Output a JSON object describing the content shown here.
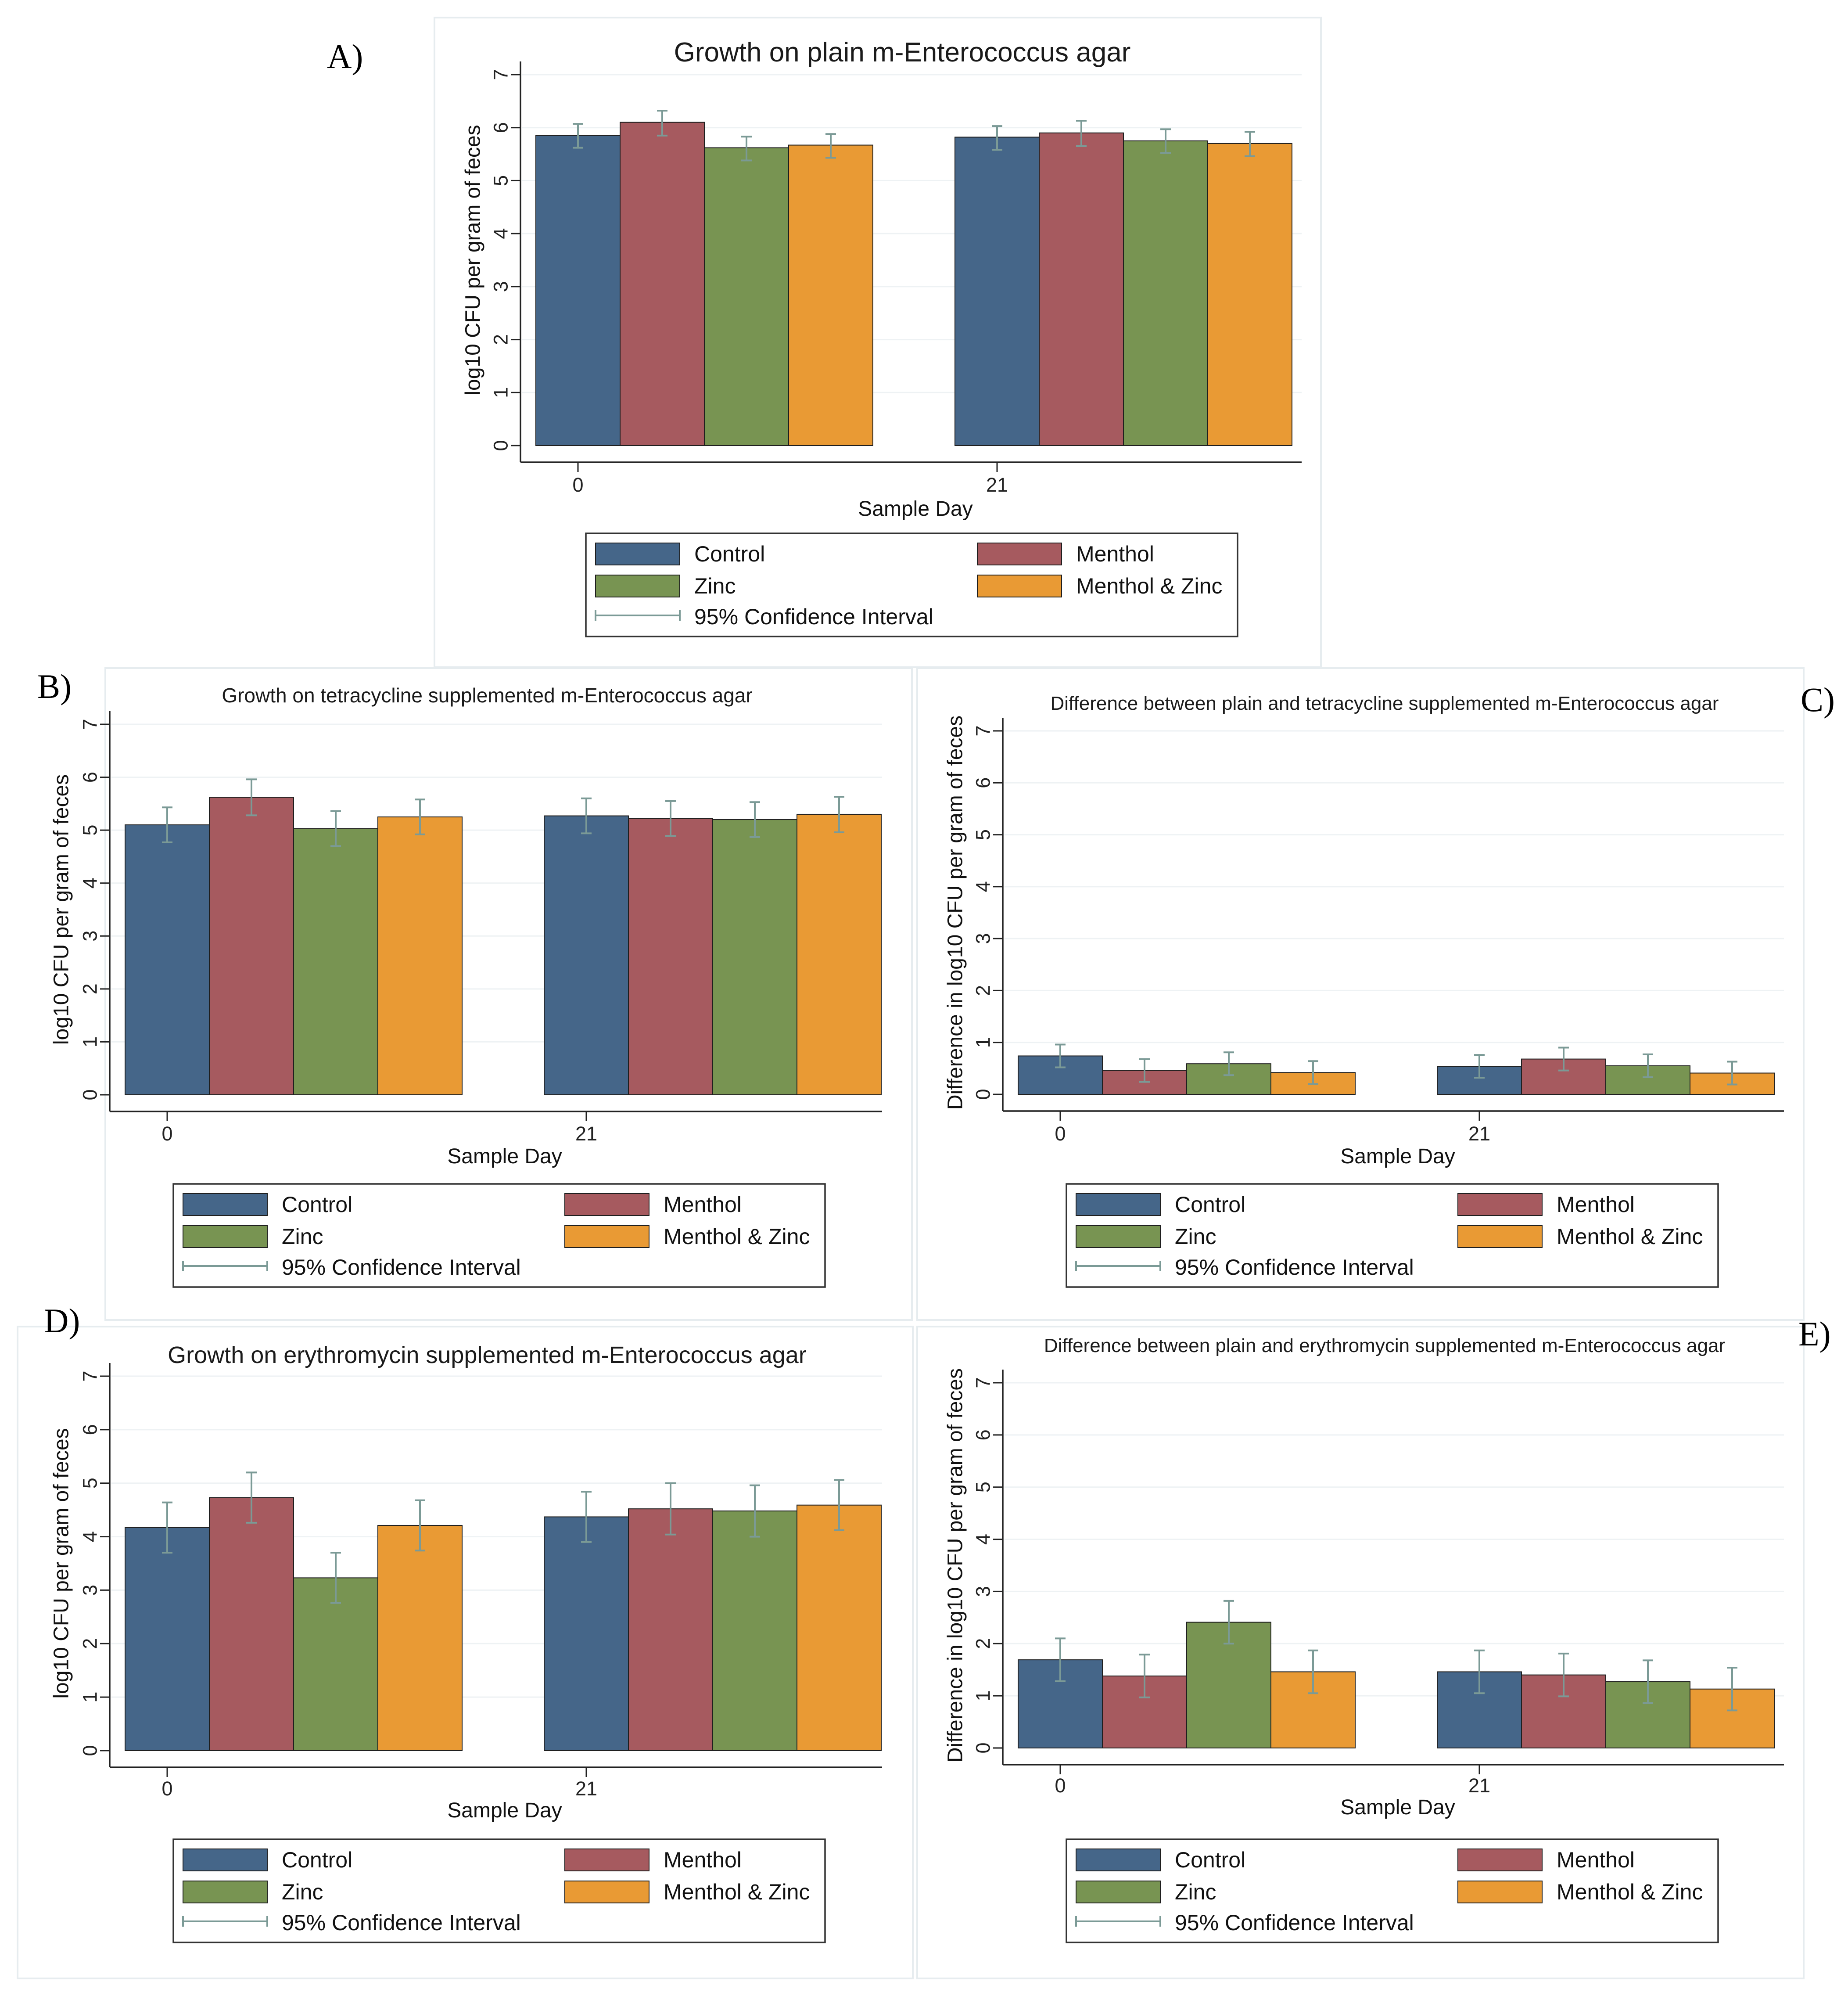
{
  "colors": {
    "Control": "#456689",
    "Menthol": "#a65a5f",
    "Zinc": "#789452",
    "Menthol & Zinc": "#e99a34",
    "ci": "#7b9a96"
  },
  "chart_data": [
    {
      "panel": "A)",
      "type": "bar",
      "title": "Growth on plain m-Enterococcus agar",
      "xlabel": "Sample Day",
      "ylabel": "log10 CFU per gram of feces",
      "categories": [
        "0",
        "21"
      ],
      "yticks": [
        "0",
        "1",
        "2",
        "3",
        "4",
        "5",
        "6",
        "7"
      ],
      "ylim": [
        0,
        7
      ],
      "series": [
        {
          "name": "Control",
          "values": [
            5.85,
            5.82
          ],
          "ci_low": [
            5.62,
            5.58
          ],
          "ci_high": [
            6.07,
            6.03
          ]
        },
        {
          "name": "Menthol",
          "values": [
            6.1,
            5.9
          ],
          "ci_low": [
            5.85,
            5.65
          ],
          "ci_high": [
            6.32,
            6.13
          ]
        },
        {
          "name": "Zinc",
          "values": [
            5.62,
            5.75
          ],
          "ci_low": [
            5.38,
            5.52
          ],
          "ci_high": [
            5.83,
            5.97
          ]
        },
        {
          "name": "Menthol & Zinc",
          "values": [
            5.67,
            5.7
          ],
          "ci_low": [
            5.43,
            5.46
          ],
          "ci_high": [
            5.88,
            5.92
          ]
        }
      ],
      "legend": {
        "entries": [
          "Control",
          "Menthol",
          "Zinc",
          "Menthol & Zinc",
          "95% Confidence Interval"
        ]
      }
    },
    {
      "panel": "B)",
      "type": "bar",
      "title": "Growth on tetracycline supplemented m-Enterococcus agar",
      "xlabel": "Sample Day",
      "ylabel": "log10 CFU per gram of feces",
      "categories": [
        "0",
        "21"
      ],
      "yticks": [
        "0",
        "1",
        "2",
        "3",
        "4",
        "5",
        "6",
        "7"
      ],
      "ylim": [
        0,
        7
      ],
      "series": [
        {
          "name": "Control",
          "values": [
            5.1,
            5.27
          ],
          "ci_low": [
            4.77,
            4.94
          ],
          "ci_high": [
            5.43,
            5.6
          ]
        },
        {
          "name": "Menthol",
          "values": [
            5.62,
            5.22
          ],
          "ci_low": [
            5.28,
            4.89
          ],
          "ci_high": [
            5.96,
            5.55
          ]
        },
        {
          "name": "Zinc",
          "values": [
            5.03,
            5.2
          ],
          "ci_low": [
            4.7,
            4.87
          ],
          "ci_high": [
            5.36,
            5.53
          ]
        },
        {
          "name": "Menthol & Zinc",
          "values": [
            5.25,
            5.3
          ],
          "ci_low": [
            4.92,
            4.96
          ],
          "ci_high": [
            5.58,
            5.63
          ]
        }
      ],
      "legend": {
        "entries": [
          "Control",
          "Menthol",
          "Zinc",
          "Menthol & Zinc",
          "95% Confidence Interval"
        ]
      }
    },
    {
      "panel": "C)",
      "type": "bar",
      "title": "Difference between plain and tetracycline supplemented m-Enterococcus agar",
      "xlabel": "Sample Day",
      "ylabel": "Difference in log10 CFU per gram of feces",
      "categories": [
        "0",
        "21"
      ],
      "yticks": [
        "0",
        "1",
        "2",
        "3",
        "4",
        "5",
        "6",
        "7"
      ],
      "ylim": [
        0,
        7
      ],
      "series": [
        {
          "name": "Control",
          "values": [
            0.74,
            0.54
          ],
          "ci_low": [
            0.52,
            0.32
          ],
          "ci_high": [
            0.96,
            0.76
          ]
        },
        {
          "name": "Menthol",
          "values": [
            0.46,
            0.68
          ],
          "ci_low": [
            0.24,
            0.46
          ],
          "ci_high": [
            0.68,
            0.9
          ]
        },
        {
          "name": "Zinc",
          "values": [
            0.59,
            0.55
          ],
          "ci_low": [
            0.37,
            0.33
          ],
          "ci_high": [
            0.81,
            0.77
          ]
        },
        {
          "name": "Menthol & Zinc",
          "values": [
            0.42,
            0.41
          ],
          "ci_low": [
            0.2,
            0.19
          ],
          "ci_high": [
            0.64,
            0.63
          ]
        }
      ],
      "legend": {
        "entries": [
          "Control",
          "Menthol",
          "Zinc",
          "Menthol & Zinc",
          "95% Confidence Interval"
        ]
      }
    },
    {
      "panel": "D)",
      "type": "bar",
      "title": "Growth on erythromycin supplemented m-Enterococcus agar",
      "xlabel": "Sample Day",
      "ylabel": "log10 CFU per gram of feces",
      "categories": [
        "0",
        "21"
      ],
      "yticks": [
        "0",
        "1",
        "2",
        "3",
        "4",
        "5",
        "6",
        "7"
      ],
      "ylim": [
        0,
        7
      ],
      "series": [
        {
          "name": "Control",
          "values": [
            4.17,
            4.37
          ],
          "ci_low": [
            3.7,
            3.9
          ],
          "ci_high": [
            4.64,
            4.84
          ]
        },
        {
          "name": "Menthol",
          "values": [
            4.73,
            4.52
          ],
          "ci_low": [
            4.26,
            4.04
          ],
          "ci_high": [
            5.2,
            5.0
          ]
        },
        {
          "name": "Zinc",
          "values": [
            3.23,
            4.48
          ],
          "ci_low": [
            2.76,
            4.0
          ],
          "ci_high": [
            3.7,
            4.96
          ]
        },
        {
          "name": "Menthol & Zinc",
          "values": [
            4.21,
            4.59
          ],
          "ci_low": [
            3.74,
            4.12
          ],
          "ci_high": [
            4.68,
            5.06
          ]
        }
      ],
      "legend": {
        "entries": [
          "Control",
          "Menthol",
          "Zinc",
          "Menthol & Zinc",
          "95% Confidence Interval"
        ]
      }
    },
    {
      "panel": "E)",
      "type": "bar",
      "title": "Difference between plain and erythromycin supplemented m-Enterococcus agar",
      "xlabel": "Sample Day",
      "ylabel": "Difference in log10 CFU per gram of feces",
      "categories": [
        "0",
        "21"
      ],
      "yticks": [
        "0",
        "1",
        "2",
        "3",
        "4",
        "5",
        "6",
        "7"
      ],
      "ylim": [
        0,
        7
      ],
      "series": [
        {
          "name": "Control",
          "values": [
            1.69,
            1.46
          ],
          "ci_low": [
            1.28,
            1.05
          ],
          "ci_high": [
            2.1,
            1.87
          ]
        },
        {
          "name": "Menthol",
          "values": [
            1.38,
            1.4
          ],
          "ci_low": [
            0.97,
            0.99
          ],
          "ci_high": [
            1.79,
            1.81
          ]
        },
        {
          "name": "Zinc",
          "values": [
            2.41,
            1.27
          ],
          "ci_low": [
            2.0,
            0.86
          ],
          "ci_high": [
            2.82,
            1.68
          ]
        },
        {
          "name": "Menthol & Zinc",
          "values": [
            1.46,
            1.13
          ],
          "ci_low": [
            1.05,
            0.72
          ],
          "ci_high": [
            1.87,
            1.54
          ]
        }
      ],
      "legend": {
        "entries": [
          "Control",
          "Menthol",
          "Zinc",
          "Menthol & Zinc",
          "95% Confidence Interval"
        ]
      }
    }
  ]
}
